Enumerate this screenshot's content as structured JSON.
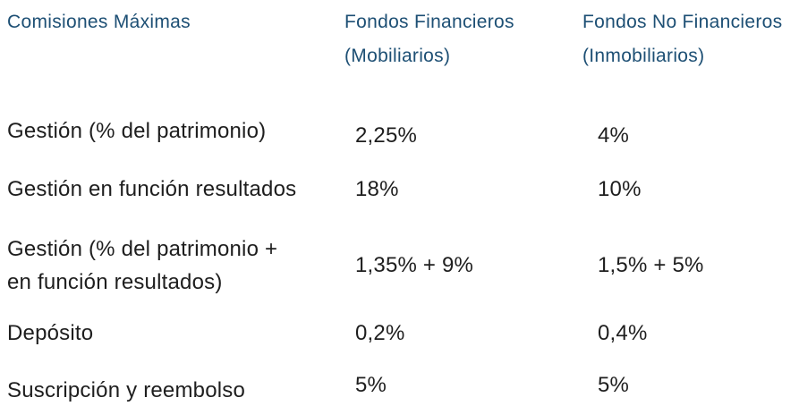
{
  "page": {
    "background": "#ffffff",
    "header_color": "#1d4f74",
    "text_color": "#1e1e1e"
  },
  "table": {
    "headers": {
      "col1": "Comisiones Máximas",
      "col2": "Fondos Financieros\n(Mobiliarios)",
      "col3": "Fondos No Financieros\n(Inmobiliarios)"
    },
    "rows": [
      {
        "label": "Gestión (% del patrimonio)",
        "financieros": "2,25%",
        "no_financieros": "4%"
      },
      {
        "label": "Gestión en función resultados",
        "financieros": "18%",
        "no_financieros": "10%"
      },
      {
        "label": "Gestión (% del patrimonio +\nen función resultados)",
        "financieros": "1,35% + 9%",
        "no_financieros": "1,5% + 5%"
      },
      {
        "label": "Depósito",
        "financieros": "0,2%",
        "no_financieros": "0,4%"
      },
      {
        "label": "Suscripción y reembolso",
        "financieros": "5%",
        "no_financieros": "5%"
      }
    ]
  }
}
